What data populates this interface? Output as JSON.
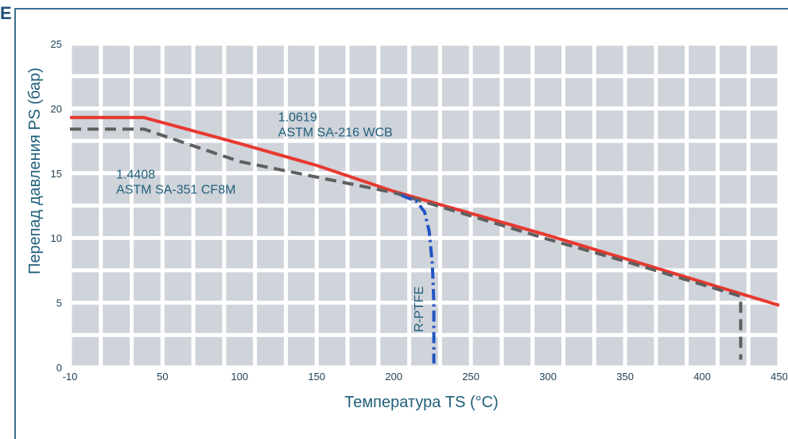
{
  "header": {
    "edge_letter": "E"
  },
  "chart_data": {
    "type": "line",
    "xlabel": "Температура TS (°C)",
    "ylabel": "Перепад давления PS (бар)",
    "xlim": [
      -10,
      450
    ],
    "ylim": [
      0,
      25
    ],
    "x_tick_labels": [
      "-10",
      "50",
      "100",
      "150",
      "200",
      "250",
      "300",
      "350",
      "400",
      "450"
    ],
    "y_tick_labels": [
      "0",
      "5",
      "10",
      "15",
      "20",
      "25"
    ],
    "grid": true,
    "series": [
      {
        "name": "1.0619 ASTM SA-216 WCB",
        "label_lines": [
          "1.0619",
          "ASTM SA-216 WCB"
        ],
        "label_at": [
          125,
          19
        ],
        "color": "#e8382f",
        "style": "solid",
        "points": [
          [
            -10,
            19.3
          ],
          [
            38,
            19.3
          ],
          [
            100,
            17.3
          ],
          [
            150,
            15.6
          ],
          [
            200,
            13.6
          ],
          [
            250,
            11.9
          ],
          [
            300,
            10.2
          ],
          [
            350,
            8.4
          ],
          [
            400,
            6.6
          ],
          [
            450,
            4.8
          ]
        ]
      },
      {
        "name": "1.4408 ASTM SA-351 CF8M",
        "label_lines": [
          "1.4408",
          "ASTM SA-351 CF8M"
        ],
        "label_at": [
          20,
          14.6
        ],
        "color": "#5f5f5f",
        "style": "dashed",
        "points": [
          [
            -10,
            18.4
          ],
          [
            38,
            18.4
          ],
          [
            100,
            15.9
          ],
          [
            150,
            14.7
          ],
          [
            200,
            13.5
          ],
          [
            250,
            11.7
          ],
          [
            300,
            9.9
          ],
          [
            350,
            8.2
          ],
          [
            400,
            6.4
          ],
          [
            425,
            5.5
          ],
          [
            425,
            0.6
          ]
        ]
      },
      {
        "name": "R-PTFE",
        "label_lines": [
          "R-PTFE"
        ],
        "label_at": [
          219,
          4.5
        ],
        "color": "#2255c4",
        "style": "dashdot",
        "points": [
          [
            205,
            13.3
          ],
          [
            215,
            12.8
          ],
          [
            220,
            12.0
          ],
          [
            223,
            10.5
          ],
          [
            225,
            8.0
          ],
          [
            226,
            5.0
          ],
          [
            226,
            0.3
          ]
        ]
      }
    ]
  }
}
